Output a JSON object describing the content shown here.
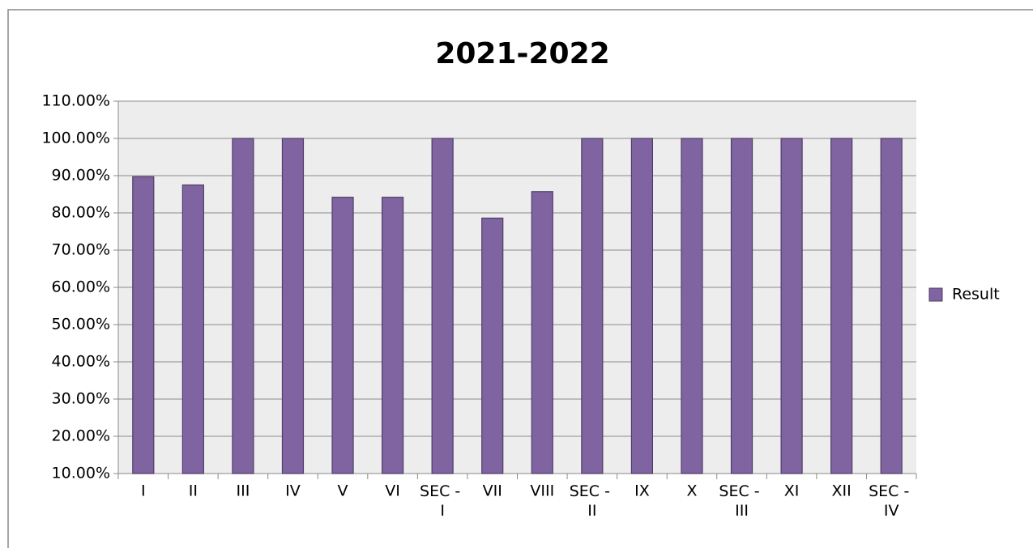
{
  "chart_data": {
    "type": "bar",
    "title": "2021-2022",
    "categories": [
      "I",
      "II",
      "III",
      "IV",
      "V",
      "VI",
      "SEC - I",
      "VII",
      "VIII",
      "SEC - II",
      "IX",
      "X",
      "SEC - III",
      "XI",
      "XII",
      "SEC - IV"
    ],
    "series": [
      {
        "name": "Result",
        "color": "#8064a2",
        "values": [
          89.7,
          87.5,
          100,
          100,
          84.2,
          84.2,
          100,
          78.6,
          85.7,
          100,
          100,
          100,
          100,
          100,
          100,
          100
        ]
      }
    ],
    "ylim": [
      10,
      110
    ],
    "yticks": [
      {
        "value": 10,
        "label": "10.00%"
      },
      {
        "value": 20,
        "label": "20.00%"
      },
      {
        "value": 30,
        "label": "30.00%"
      },
      {
        "value": 40,
        "label": "40.00%"
      },
      {
        "value": 50,
        "label": "50.00%"
      },
      {
        "value": 60,
        "label": "60.00%"
      },
      {
        "value": 70,
        "label": "70.00%"
      },
      {
        "value": 80,
        "label": "80.00%"
      },
      {
        "value": 90,
        "label": "90.00%"
      },
      {
        "value": 100,
        "label": "100.00%"
      },
      {
        "value": 110,
        "label": "110.00%"
      }
    ],
    "grid": true,
    "legend": "right"
  }
}
